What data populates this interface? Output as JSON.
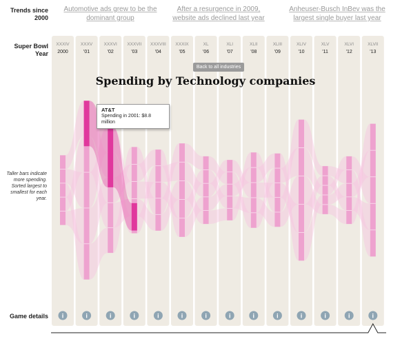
{
  "labels": {
    "trends": "Trends since 2000",
    "super_bowl_year": "Super Bowl Year",
    "game_details": "Game details"
  },
  "trends": [
    "Automotive ads grew to be the dominant group",
    "After a resurgence in 2009, website ads declined last year",
    "Anheuser-Busch InBev was the largest single buyer last year"
  ],
  "back_button": "Back to all industries",
  "side_note": "Taller bars indicate more spending. Sorted largest to smallest for each year.",
  "tooltip": {
    "title": "AT&T",
    "text": "Spending in 2001: $8.8 million"
  },
  "info_icon_glyph": "i",
  "colors": {
    "column_bg": "#efebe3",
    "bar": "#eea2cf",
    "bar_highlight": "#e0389d",
    "flow": "#f6c3df",
    "info_icon": "#8fa5b3"
  },
  "chart_data": {
    "type": "bar",
    "title": "Spending by Technology companies",
    "categories": [
      "2000",
      "'01",
      "'02",
      "'03",
      "'04",
      "'05",
      "'06",
      "'07",
      "'08",
      "'09",
      "'10",
      "'11",
      "'12",
      "'13"
    ],
    "roman_numerals": [
      "XXXIV",
      "XXXV",
      "XXXVI",
      "XXXVII",
      "XXXVIII",
      "XXXIX",
      "XL",
      "XLI",
      "XLII",
      "XLIII",
      "XLIV",
      "XLV",
      "XLVI",
      "XLVII"
    ],
    "values": [
      13.5,
      34.6,
      24.3,
      16.7,
      15.7,
      18.1,
      13.1,
      11.7,
      14.6,
      14.2,
      27.3,
      9.3,
      13.1,
      25.7
    ],
    "highlight_series": {
      "name": "AT&T",
      "values": [
        null,
        8.8,
        11.6,
        5.3,
        null,
        null,
        null,
        null,
        null,
        null,
        null,
        null,
        null,
        null
      ]
    }
  }
}
